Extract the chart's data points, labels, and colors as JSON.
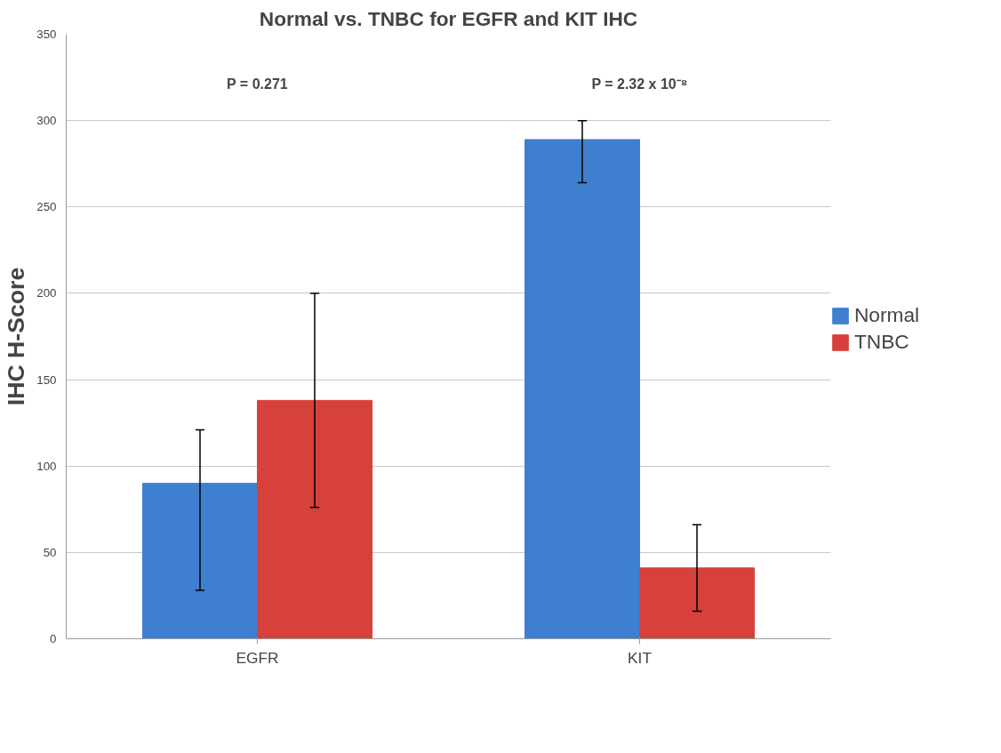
{
  "chart_data": {
    "type": "bar",
    "title": "Normal vs. TNBC for EGFR and KIT IHC",
    "ylabel": "IHC H-Score",
    "categories": [
      "EGFR",
      "KIT"
    ],
    "series": [
      {
        "name": "Normal",
        "color": "#3f7fcf",
        "values": [
          90,
          289
        ],
        "errors": [
          [
            28,
            121
          ],
          [
            264,
            300
          ]
        ]
      },
      {
        "name": "TNBC",
        "color": "#d6413c",
        "values": [
          138,
          41
        ],
        "errors": [
          [
            76,
            200
          ],
          [
            16,
            66
          ]
        ]
      }
    ],
    "annotations": [
      "P = 0.271",
      "P = 2.32 x 10⁻⁸"
    ],
    "ylim": [
      0,
      350
    ],
    "yticks": [
      0,
      50,
      100,
      150,
      200,
      250,
      300,
      350
    ],
    "grid": "y",
    "legend": "right"
  }
}
